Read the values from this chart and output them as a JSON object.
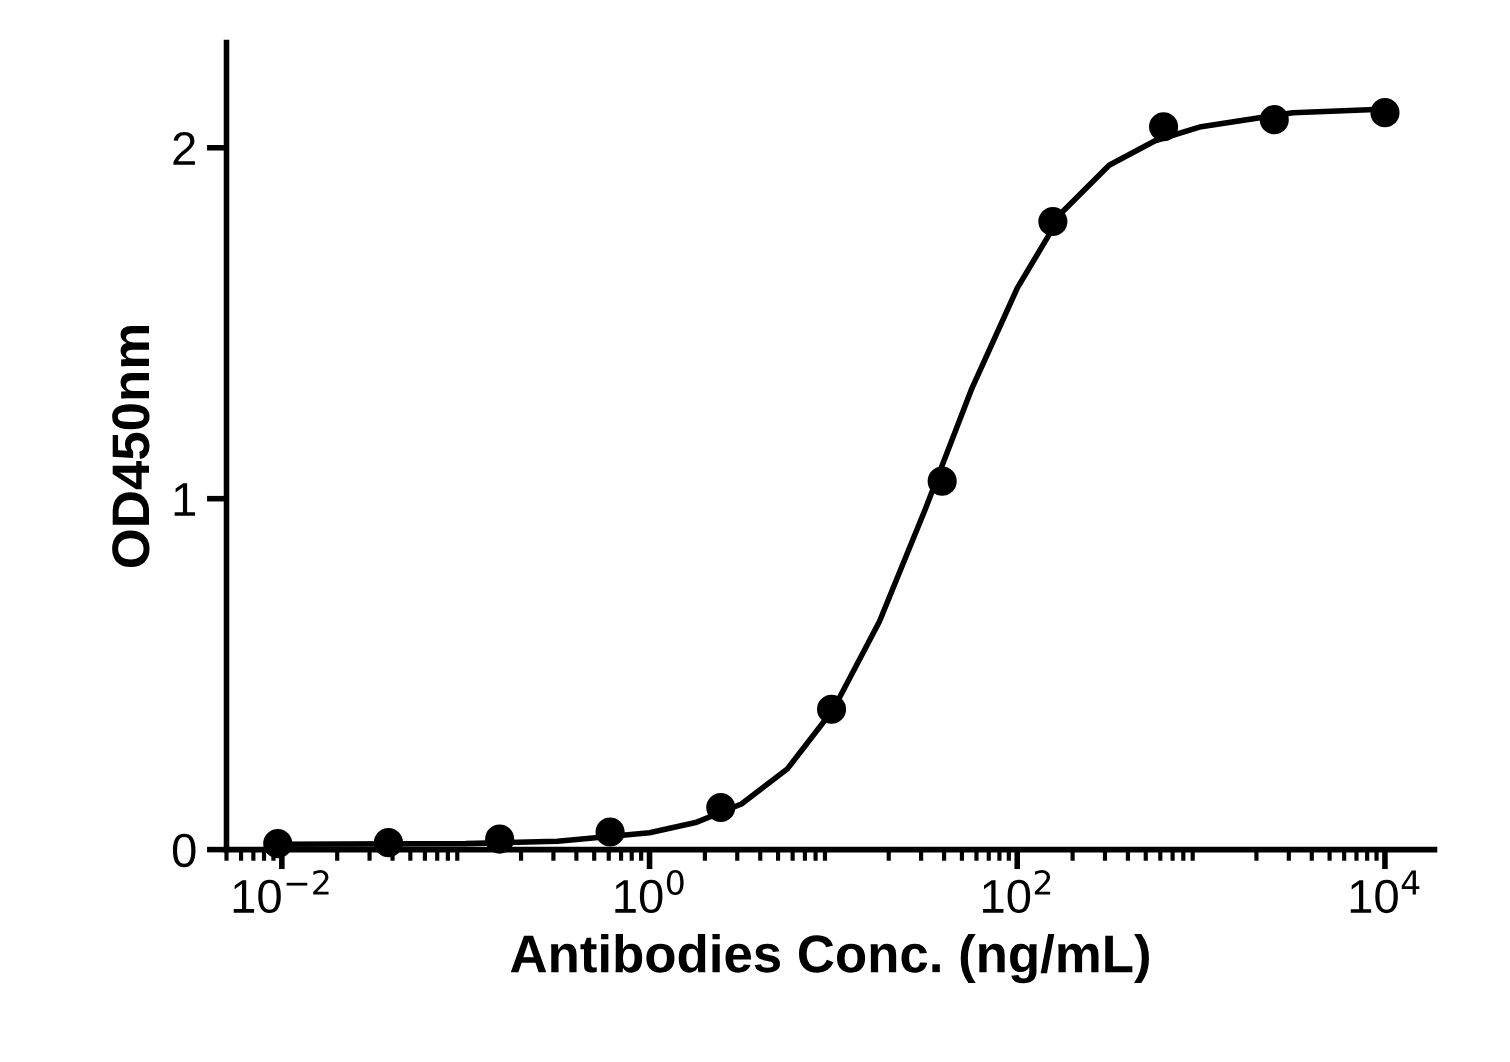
{
  "chart_data": {
    "type": "scatter",
    "xlabel": "Antibodies Conc. (ng/mL)",
    "ylabel": "OD450nm",
    "log": "x",
    "grid": false,
    "marker": "circle",
    "xlim": [
      0.005,
      18600
    ],
    "ylim": [
      0,
      2.3
    ],
    "xticks": [
      {
        "value": 0.01,
        "label": "10$^{−2}$"
      },
      {
        "value": 1,
        "label": "10$^{0}$"
      },
      {
        "value": 100,
        "label": "10$^{2}$"
      },
      {
        "value": 10000,
        "label": "10$^{4}$"
      }
    ],
    "yticks": [
      0,
      1,
      2
    ],
    "series": [
      {
        "color": "#000000",
        "x": [
          0.0095,
          0.038,
          0.153,
          0.61,
          2.44,
          9.77,
          39.06,
          156.25,
          625,
          2500,
          10000
        ],
        "values": [
          0.017,
          0.02,
          0.03,
          0.05,
          0.12,
          0.4,
          1.05,
          1.79,
          2.06,
          2.08,
          2.1
        ]
      },
      {
        "type": "line",
        "color": "#000000",
        "marker": "none",
        "x": [
          0.01,
          0.1,
          0.316,
          1,
          1.78,
          3.16,
          5.62,
          10,
          17.8,
          31.6,
          56.2,
          100,
          178,
          316,
          562,
          1000,
          3160,
          10000
        ],
        "values": [
          0.015,
          0.017,
          0.024,
          0.048,
          0.077,
          0.13,
          0.23,
          0.4,
          0.65,
          0.97,
          1.31,
          1.6,
          1.82,
          1.95,
          2.02,
          2.06,
          2.1,
          2.11
        ]
      }
    ]
  }
}
